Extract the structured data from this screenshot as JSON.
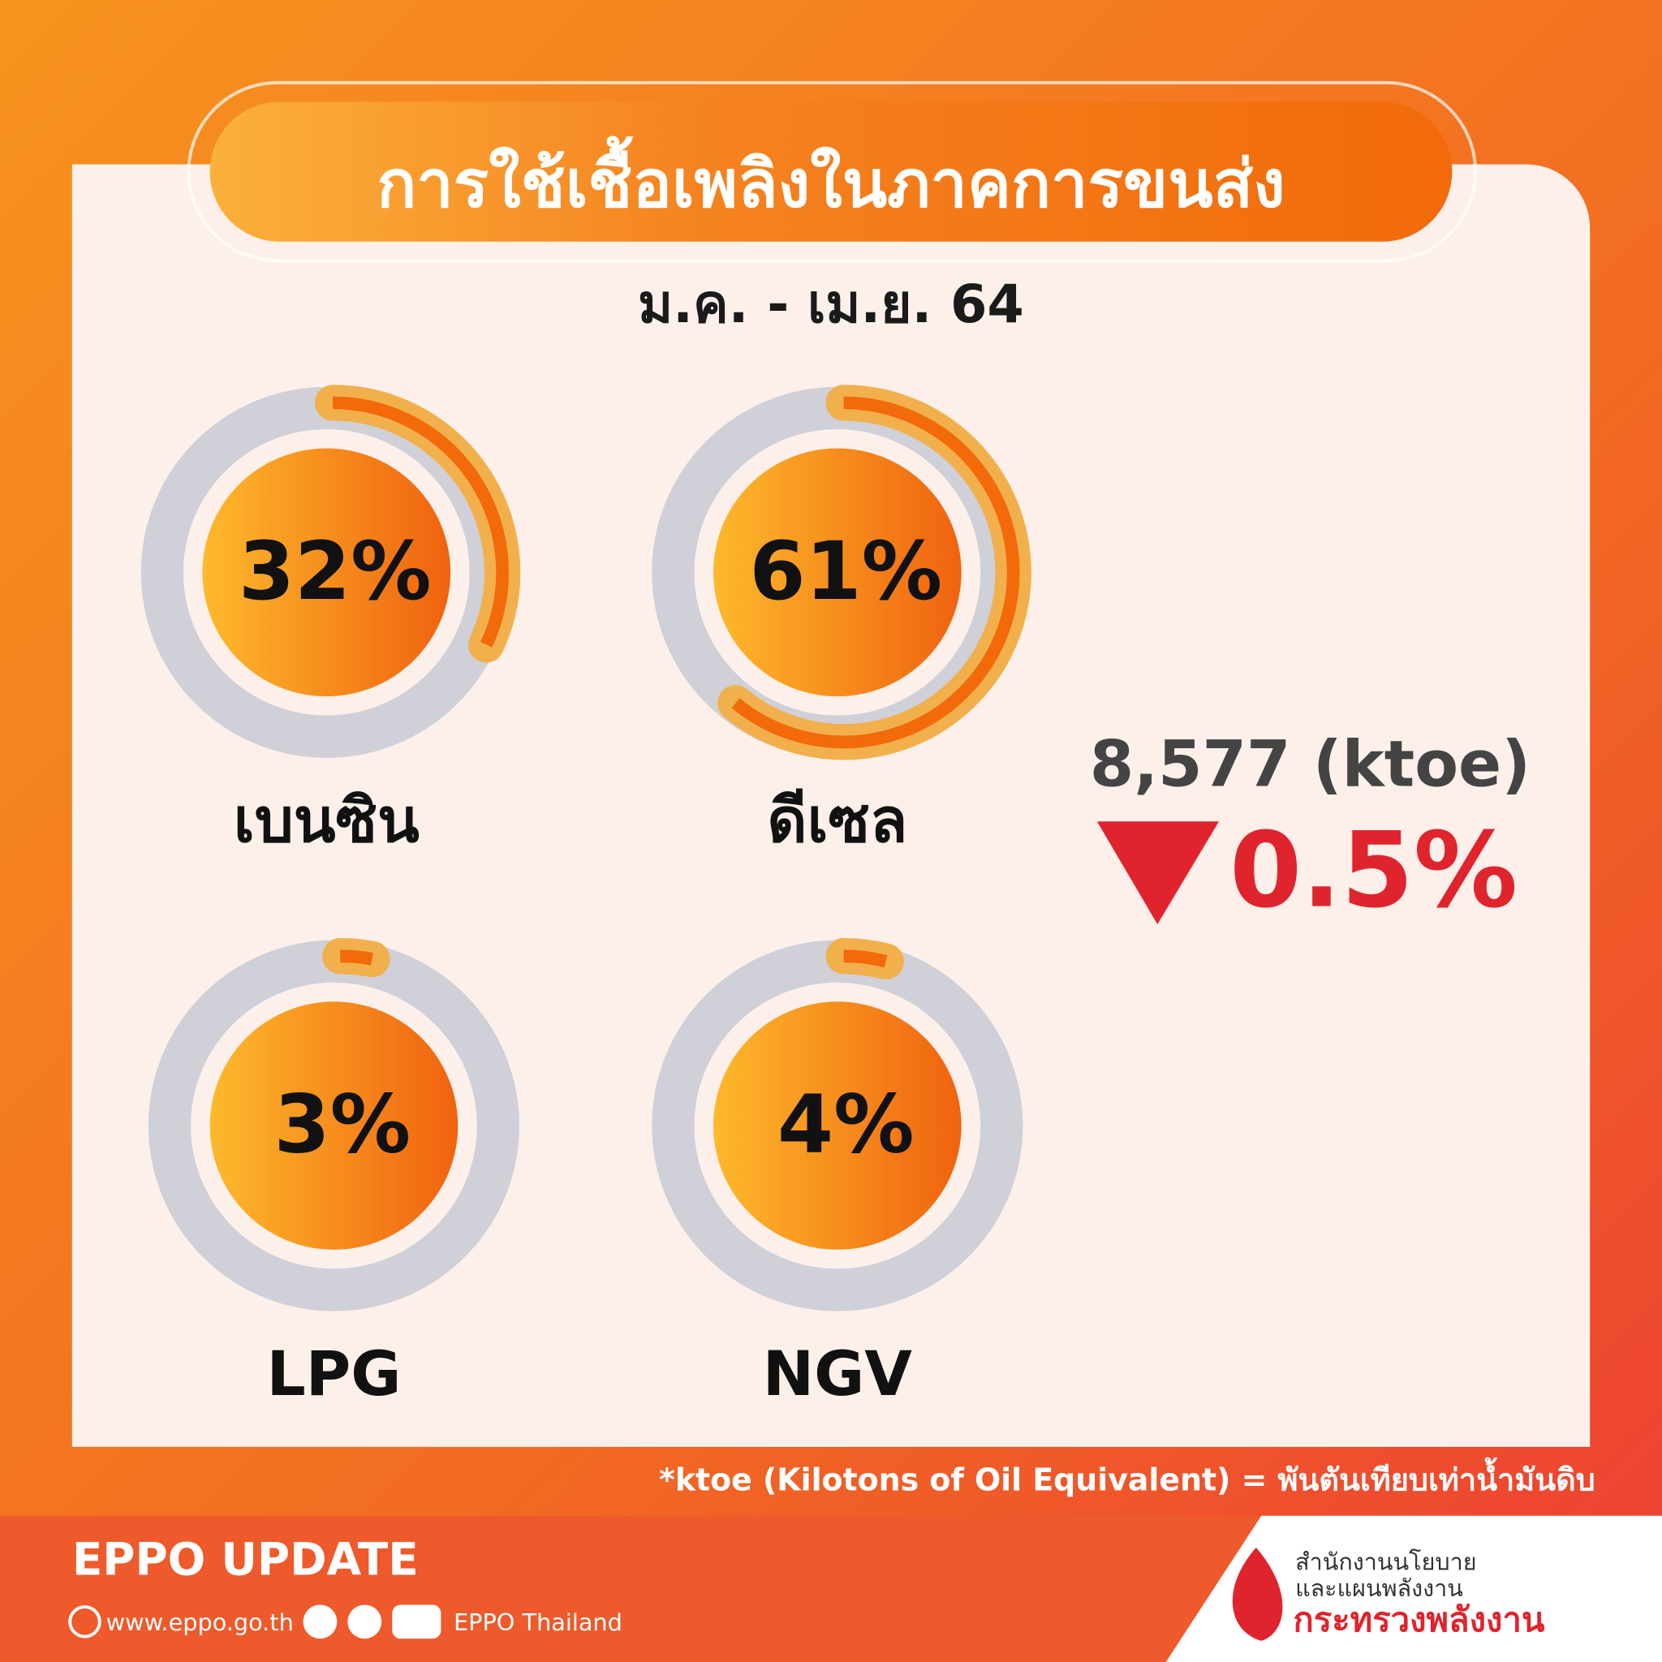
{
  "header": {
    "title": "การใช้เชื้อเพลิงในภาคการขนส่ง",
    "subtitle": "ม.ค. - เม.ย. 64"
  },
  "chart_data": {
    "type": "donut",
    "categories": [
      "เบนซิน",
      "ดีเซล",
      "LPG",
      "NGV"
    ],
    "values": [
      32,
      61,
      3,
      4
    ],
    "value_labels": [
      "32%",
      "61%",
      "3%",
      "4%"
    ],
    "color": "#f26a0a",
    "track_color": "#cfd0d8"
  },
  "summary": {
    "total": "8,577 (ktoe)",
    "change": "0.5%"
  },
  "footnote": "*ktoe (Kilotons of Oil Equivalent) = พันตันเทียบเท่าน้ำมันดิบ",
  "footer": {
    "brand": "EPPO UPDATE",
    "website": "www.eppo.go.th",
    "social": "EPPO Thailand",
    "org_line1": "สำนักงานนโยบาย",
    "org_line2": "และแผนพลังงาน",
    "ministry": "กระทรวงพลังงาน"
  }
}
